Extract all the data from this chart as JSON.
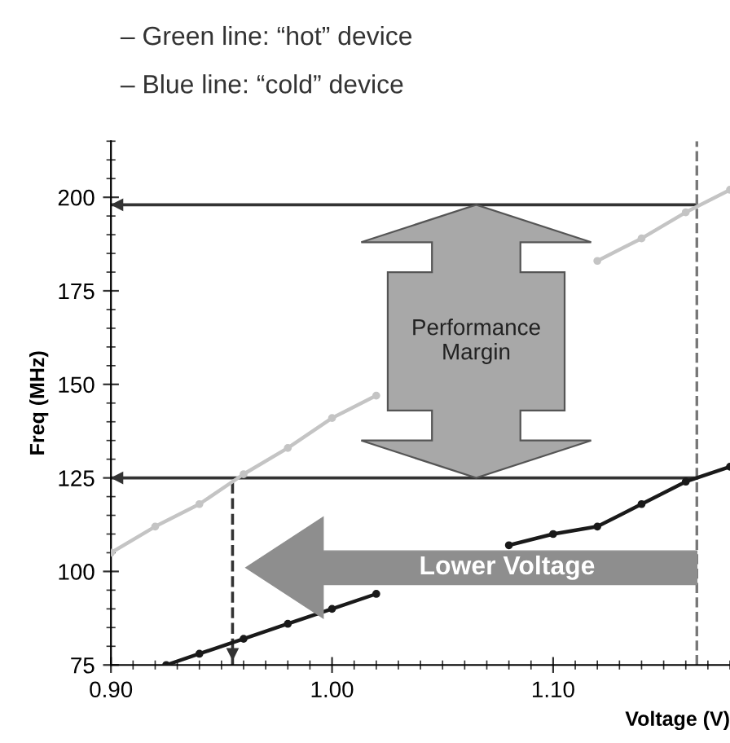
{
  "chart_data": {
    "type": "line",
    "xlabel": "Voltage (V)",
    "ylabel": "Freq (MHz)",
    "xlim": [
      0.9,
      1.18
    ],
    "xticks": [
      {
        "value": 0.9,
        "label": "0.90"
      },
      {
        "value": 1.0,
        "label": "1.00"
      },
      {
        "value": 1.1,
        "label": "1.10"
      }
    ],
    "ylim": [
      75,
      215
    ],
    "yticks": [
      75,
      100,
      125,
      150,
      175,
      200
    ],
    "grid": false,
    "marker": "circle",
    "line_style": "solid",
    "series": [
      {
        "color": "#c4c4c4",
        "x": [
          0.9,
          0.92,
          0.94,
          0.96,
          0.98,
          1.0,
          1.02,
          1.04,
          1.06,
          1.08,
          1.1,
          1.12,
          1.14,
          1.16,
          1.18
        ],
        "values": [
          105,
          112,
          118,
          126,
          133,
          141,
          147,
          null,
          null,
          null,
          null,
          183,
          189,
          196,
          202
        ]
      },
      {
        "color": "#1a1a1a",
        "x": [
          0.925,
          0.94,
          0.96,
          0.98,
          1.0,
          1.02,
          1.04,
          1.06,
          1.08,
          1.1,
          1.12,
          1.14,
          1.16,
          1.18
        ],
        "values": [
          75,
          78,
          82,
          86,
          90,
          94,
          null,
          null,
          107,
          110,
          112,
          118,
          124,
          128
        ]
      }
    ],
    "ref_lines": [
      {
        "axis": "y",
        "value": 198,
        "color": "#333333",
        "line_style": "solid"
      },
      {
        "axis": "y",
        "value": 125,
        "color": "#333333",
        "line_style": "solid"
      },
      {
        "axis": "x",
        "value": 1.165,
        "color": "#777777",
        "line_style": "dashed"
      },
      {
        "axis": "x",
        "value": 0.955,
        "color": "#333333",
        "line_style": "dashed"
      }
    ],
    "annotations": [
      "– Green line: “hot” device",
      "– Blue line: “cold” device",
      "Performance\nMargin",
      "Lower Voltage"
    ]
  }
}
